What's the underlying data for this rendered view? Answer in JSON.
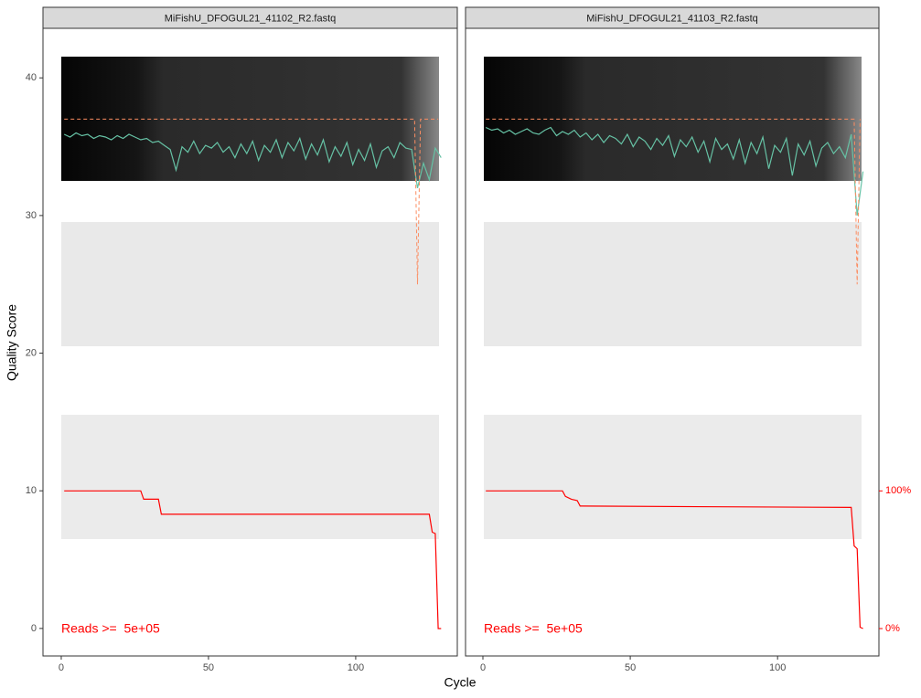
{
  "xlabel": "Cycle",
  "ylabel": "Quality Score",
  "chart_data": [
    {
      "type": "line",
      "title": "MiFishU_DFOGUL21_41102_R2.fastq",
      "annotation": "Reads >=  5e+05",
      "xlim": [
        -6.2,
        134.5
      ],
      "xticks": [
        0,
        50,
        100
      ],
      "ylim": [
        -2,
        43.6
      ],
      "yticks": [
        0,
        10,
        20,
        30,
        40
      ],
      "y2lim": [
        -19.9,
        436
      ],
      "series": [
        {
          "color": "#66c2a5",
          "dashed": false,
          "x": [
            1,
            3,
            5,
            7,
            9,
            11,
            13,
            15,
            17,
            19,
            21,
            23,
            25,
            27,
            29,
            31,
            33,
            35,
            37,
            39,
            41,
            43,
            45,
            47,
            49,
            51,
            53,
            55,
            57,
            59,
            61,
            63,
            65,
            67,
            69,
            71,
            73,
            75,
            77,
            79,
            81,
            83,
            85,
            87,
            89,
            91,
            93,
            95,
            97,
            99,
            101,
            103,
            105,
            107,
            109,
            111,
            113,
            115,
            117,
            119,
            121,
            123,
            125,
            127,
            129
          ],
          "values": [
            35.9,
            35.7,
            36.0,
            35.8,
            35.9,
            35.6,
            35.8,
            35.7,
            35.5,
            35.8,
            35.6,
            35.9,
            35.7,
            35.5,
            35.6,
            35.3,
            35.4,
            35.1,
            34.8,
            33.3,
            35.0,
            34.6,
            35.4,
            34.5,
            35.1,
            34.9,
            35.3,
            34.6,
            35.0,
            34.2,
            35.2,
            34.5,
            35.4,
            34.0,
            35.1,
            34.6,
            35.5,
            34.2,
            35.3,
            34.7,
            35.6,
            34.1,
            35.2,
            34.4,
            35.5,
            33.9,
            35.0,
            34.3,
            35.3,
            33.7,
            34.8,
            34.0,
            35.2,
            33.5,
            34.7,
            35.0,
            34.2,
            35.3,
            34.9,
            34.8,
            32.0,
            33.8,
            32.6,
            34.9,
            34.2
          ]
        },
        {
          "color": "#fc8d62",
          "dashed": true,
          "x": [
            1,
            120,
            121,
            122,
            128
          ],
          "values": [
            37,
            37,
            25,
            37,
            37
          ]
        },
        {
          "color": "#ff0000",
          "dashed": false,
          "axis": "y2",
          "x": [
            1,
            27,
            28,
            33,
            34,
            125,
            126,
            127,
            128,
            129
          ],
          "values": [
            100,
            100,
            94,
            94,
            83,
            83,
            70,
            69,
            0,
            0
          ]
        }
      ]
    },
    {
      "type": "line",
      "title": "MiFishU_DFOGUL21_41103_R2.fastq",
      "annotation": "Reads >=  5e+05",
      "xlim": [
        -5.9,
        134.4
      ],
      "xticks": [
        0,
        50,
        100
      ],
      "ylim": [
        -2,
        43.6
      ],
      "y2lim": [
        -19.9,
        436
      ],
      "y2ticks": [
        {
          "value": 0,
          "label": "0%"
        },
        {
          "value": 100,
          "label": "100%"
        }
      ],
      "series": [
        {
          "color": "#66c2a5",
          "dashed": false,
          "x": [
            1,
            3,
            5,
            7,
            9,
            11,
            13,
            15,
            17,
            19,
            21,
            23,
            25,
            27,
            29,
            31,
            33,
            35,
            37,
            39,
            41,
            43,
            45,
            47,
            49,
            51,
            53,
            55,
            57,
            59,
            61,
            63,
            65,
            67,
            69,
            71,
            73,
            75,
            77,
            79,
            81,
            83,
            85,
            87,
            89,
            91,
            93,
            95,
            97,
            99,
            101,
            103,
            105,
            107,
            109,
            111,
            113,
            115,
            117,
            119,
            121,
            123,
            125,
            127,
            129
          ],
          "values": [
            36.4,
            36.2,
            36.3,
            36.0,
            36.2,
            35.9,
            36.1,
            36.3,
            36.0,
            35.9,
            36.2,
            36.4,
            35.8,
            36.1,
            35.9,
            36.2,
            35.7,
            36.0,
            35.5,
            35.9,
            35.3,
            35.8,
            35.6,
            35.2,
            35.9,
            35.0,
            35.7,
            35.4,
            34.8,
            35.6,
            35.1,
            35.8,
            34.3,
            35.5,
            35.0,
            35.7,
            34.6,
            35.4,
            33.9,
            35.6,
            34.8,
            35.2,
            34.1,
            35.5,
            33.8,
            35.3,
            34.5,
            35.7,
            33.4,
            35.1,
            34.6,
            35.6,
            32.9,
            35.2,
            34.4,
            35.4,
            33.6,
            34.9,
            35.3,
            34.5,
            35.0,
            34.2,
            35.9,
            30.0,
            33.2
          ]
        },
        {
          "color": "#fc8d62",
          "dashed": true,
          "x": [
            1,
            126,
            127,
            128
          ],
          "values": [
            37,
            37,
            25,
            37
          ]
        },
        {
          "color": "#ff0000",
          "dashed": false,
          "axis": "y2",
          "x": [
            1,
            27,
            28,
            30,
            32,
            33,
            125,
            126,
            127,
            128,
            129
          ],
          "values": [
            100,
            100,
            96,
            94,
            93,
            89,
            88,
            60,
            58,
            1,
            0
          ]
        }
      ]
    }
  ]
}
